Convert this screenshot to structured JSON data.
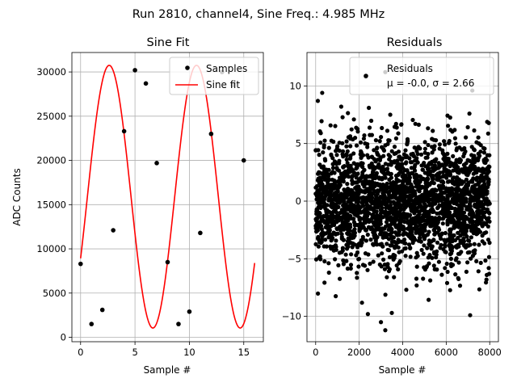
{
  "figure": {
    "suptitle": "Run 2810, channel4, Sine Freq.: 4.985 MHz"
  },
  "chart_data": [
    {
      "type": "line",
      "title": "Sine Fit",
      "xlabel": "Sample #",
      "ylabel": "ADC Counts",
      "xlim": [
        -0.8,
        16.8
      ],
      "ylim": [
        -500,
        32200
      ],
      "xticks": [
        0,
        5,
        10,
        15
      ],
      "yticks": [
        0,
        5000,
        10000,
        15000,
        20000,
        25000,
        30000
      ],
      "grid": true,
      "legend": {
        "placement": "top-right",
        "entries": [
          "Samples",
          "Sine fit"
        ]
      },
      "series": [
        {
          "name": "Samples",
          "kind": "scatter",
          "color": "#000000",
          "x": [
            0,
            1,
            2,
            3,
            4,
            5,
            6,
            7,
            8,
            9,
            10,
            11,
            12,
            13,
            14,
            15
          ],
          "y": [
            8300,
            1500,
            3100,
            12100,
            23300,
            30200,
            28700,
            19700,
            8500,
            1500,
            2900,
            11800,
            23000,
            30000,
            28500,
            20000
          ]
        },
        {
          "name": "Sine fit",
          "kind": "line",
          "color": "#ff0000",
          "model": {
            "amplitude": 14850,
            "offset": 15900,
            "period": 8.026,
            "phase_deg": -28,
            "x_range": [
              0,
              16
            ]
          }
        }
      ]
    },
    {
      "type": "scatter",
      "title": "Residuals",
      "xlabel": "Sample #",
      "ylabel": "",
      "xlim": [
        -400,
        8400
      ],
      "ylim": [
        -12.2,
        12.9
      ],
      "xticks": [
        0,
        2000,
        4000,
        6000,
        8000
      ],
      "yticks": [
        -10,
        -5,
        0,
        5,
        10
      ],
      "grid": true,
      "legend": {
        "placement": "top-right",
        "entries": [
          "Residuals",
          "μ = -0.0, σ = 2.66"
        ]
      },
      "series": [
        {
          "name": "Residuals",
          "color": "#000000",
          "n_points": 8000,
          "x_range": [
            0,
            8000
          ],
          "mean": 0.0,
          "std": 2.66,
          "notable_points": [
            {
              "x": 100,
              "y": 8.7
            },
            {
              "x": 300,
              "y": 9.4
            },
            {
              "x": 2300,
              "y": 10.8
            },
            {
              "x": 3200,
              "y": 11.2
            },
            {
              "x": 7200,
              "y": 9.6
            },
            {
              "x": 2400,
              "y": -9.8
            },
            {
              "x": 3200,
              "y": -11.2
            },
            {
              "x": 3500,
              "y": -9.7
            },
            {
              "x": 7100,
              "y": -9.9
            },
            {
              "x": 3000,
              "y": -10.5
            }
          ]
        }
      ]
    }
  ]
}
